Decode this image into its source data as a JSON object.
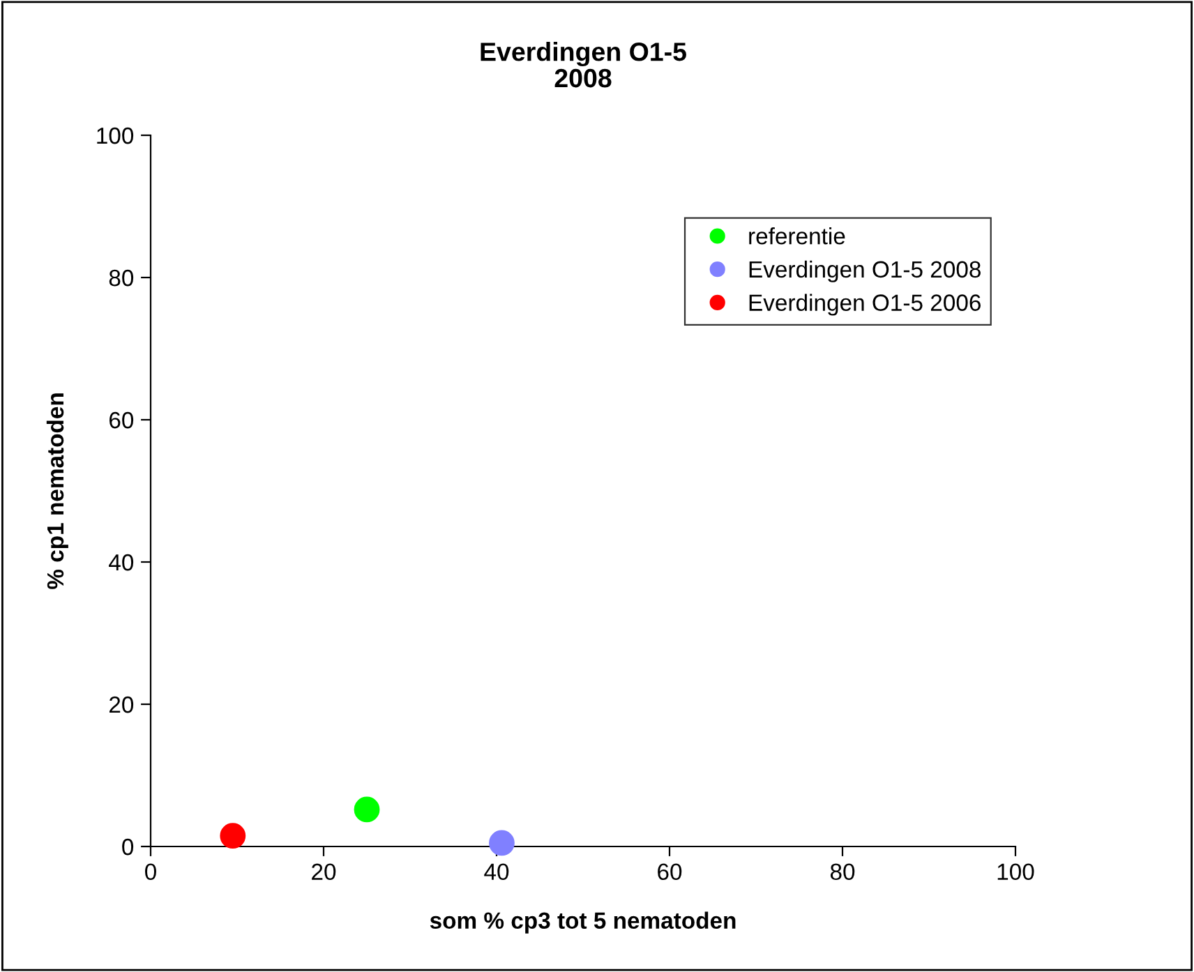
{
  "chart_data": {
    "type": "scatter",
    "title": "Everdingen O1-5\n2008",
    "xlabel": "som % cp3 tot 5 nematoden",
    "ylabel": "% cp1 nematoden",
    "series": [
      {
        "name": "referentie",
        "color": "#00ff00",
        "x": [
          25.0
        ],
        "values": [
          5.2
        ]
      },
      {
        "name": "Everdingen O1-5 2008",
        "color": "#8080ff",
        "x": [
          40.6
        ],
        "values": [
          0.5
        ]
      },
      {
        "name": "Everdingen O1-5 2006",
        "color": "#ff0000",
        "x": [
          9.5
        ],
        "values": [
          1.5
        ]
      }
    ],
    "xlim": [
      0,
      100
    ],
    "ylim": [
      0,
      100
    ],
    "xticks": [
      0,
      20,
      40,
      60,
      80,
      100
    ],
    "yticks": [
      0,
      20,
      40,
      60,
      80,
      100
    ],
    "grid": false,
    "legend": "top right",
    "marker": "circle"
  }
}
